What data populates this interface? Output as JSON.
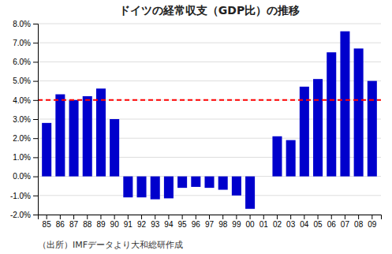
{
  "chart_data": {
    "type": "bar",
    "title": "ドイツの経常収支（GDP比）の推移",
    "caption": "（出所）IMFデータより大和総研作成",
    "categories": [
      "85",
      "86",
      "87",
      "88",
      "89",
      "90",
      "91",
      "92",
      "93",
      "94",
      "95",
      "96",
      "97",
      "98",
      "99",
      "00",
      "01",
      "02",
      "03",
      "04",
      "05",
      "06",
      "07",
      "08",
      "09"
    ],
    "values": [
      2.8,
      4.3,
      4.0,
      4.2,
      4.6,
      3.0,
      -1.1,
      -1.1,
      -1.2,
      -1.15,
      -0.6,
      -0.55,
      -0.6,
      -0.7,
      -1.0,
      -1.7,
      0.0,
      2.1,
      1.9,
      4.7,
      5.1,
      6.5,
      7.6,
      6.7,
      5.0
    ],
    "color": "#0000CC",
    "reference_lines": [
      {
        "value": 4.0,
        "color": "#FF0000",
        "line_style": "dashed"
      }
    ],
    "ylim": [
      -2.0,
      8.0
    ],
    "yticks": [
      {
        "value": -2.0,
        "label": "-2.0%"
      },
      {
        "value": -1.0,
        "label": "-1.0%"
      },
      {
        "value": 0.0,
        "label": "0.0%"
      },
      {
        "value": 1.0,
        "label": "1.0%"
      },
      {
        "value": 2.0,
        "label": "2.0%"
      },
      {
        "value": 3.0,
        "label": "3.0%"
      },
      {
        "value": 4.0,
        "label": "4.0%"
      },
      {
        "value": 5.0,
        "label": "5.0%"
      },
      {
        "value": 6.0,
        "label": "6.0%"
      },
      {
        "value": 7.0,
        "label": "7.0%"
      },
      {
        "value": 8.0,
        "label": "8.0%"
      }
    ],
    "grid": true
  }
}
